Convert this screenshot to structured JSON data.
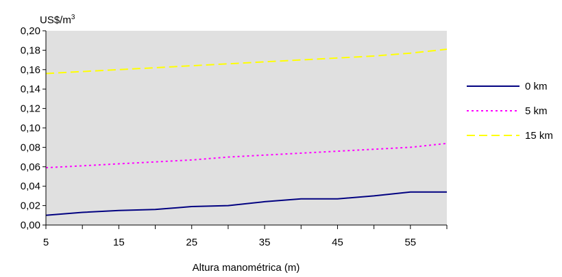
{
  "chart_data": {
    "type": "line",
    "ylabel_prefix": "US$/m",
    "ylabel_sup": "3",
    "xlabel": "Altura manométrica (m)",
    "xlim": [
      5,
      60
    ],
    "ylim": [
      0,
      0.2
    ],
    "grid": false,
    "x_ticks": [
      5,
      15,
      25,
      35,
      45,
      55
    ],
    "x_minor_ticks": [
      10,
      20,
      30,
      40,
      50,
      60
    ],
    "y_ticks": [
      0,
      0.02,
      0.04,
      0.06,
      0.08,
      0.1,
      0.12,
      0.14,
      0.16,
      0.18,
      0.2
    ],
    "x_tick_labels": [
      "5",
      "15",
      "25",
      "35",
      "45",
      "55"
    ],
    "y_tick_labels": [
      "0,00",
      "0,02",
      "0,04",
      "0,06",
      "0,08",
      "0,10",
      "0,12",
      "0,14",
      "0,16",
      "0,18",
      "0,20"
    ],
    "legend_position": "right",
    "plot_background": "#e0e0e0",
    "series": [
      {
        "name": "0 km",
        "color": "#000080",
        "style": "solid",
        "x": [
          5,
          10,
          15,
          20,
          25,
          30,
          35,
          40,
          45,
          50,
          55,
          60
        ],
        "y": [
          0.01,
          0.013,
          0.015,
          0.016,
          0.019,
          0.02,
          0.024,
          0.027,
          0.027,
          0.03,
          0.034,
          0.034
        ]
      },
      {
        "name": "5 km",
        "color": "#ff00ff",
        "style": "dotted",
        "x": [
          5,
          10,
          15,
          20,
          25,
          30,
          35,
          40,
          45,
          50,
          55,
          60
        ],
        "y": [
          0.059,
          0.061,
          0.063,
          0.065,
          0.067,
          0.07,
          0.072,
          0.074,
          0.076,
          0.078,
          0.08,
          0.084
        ]
      },
      {
        "name": "15 km",
        "color": "#ffff00",
        "style": "dashed",
        "x": [
          5,
          10,
          15,
          20,
          25,
          30,
          35,
          40,
          45,
          50,
          55,
          60
        ],
        "y": [
          0.156,
          0.158,
          0.16,
          0.162,
          0.164,
          0.166,
          0.168,
          0.17,
          0.172,
          0.174,
          0.177,
          0.181
        ]
      }
    ]
  }
}
